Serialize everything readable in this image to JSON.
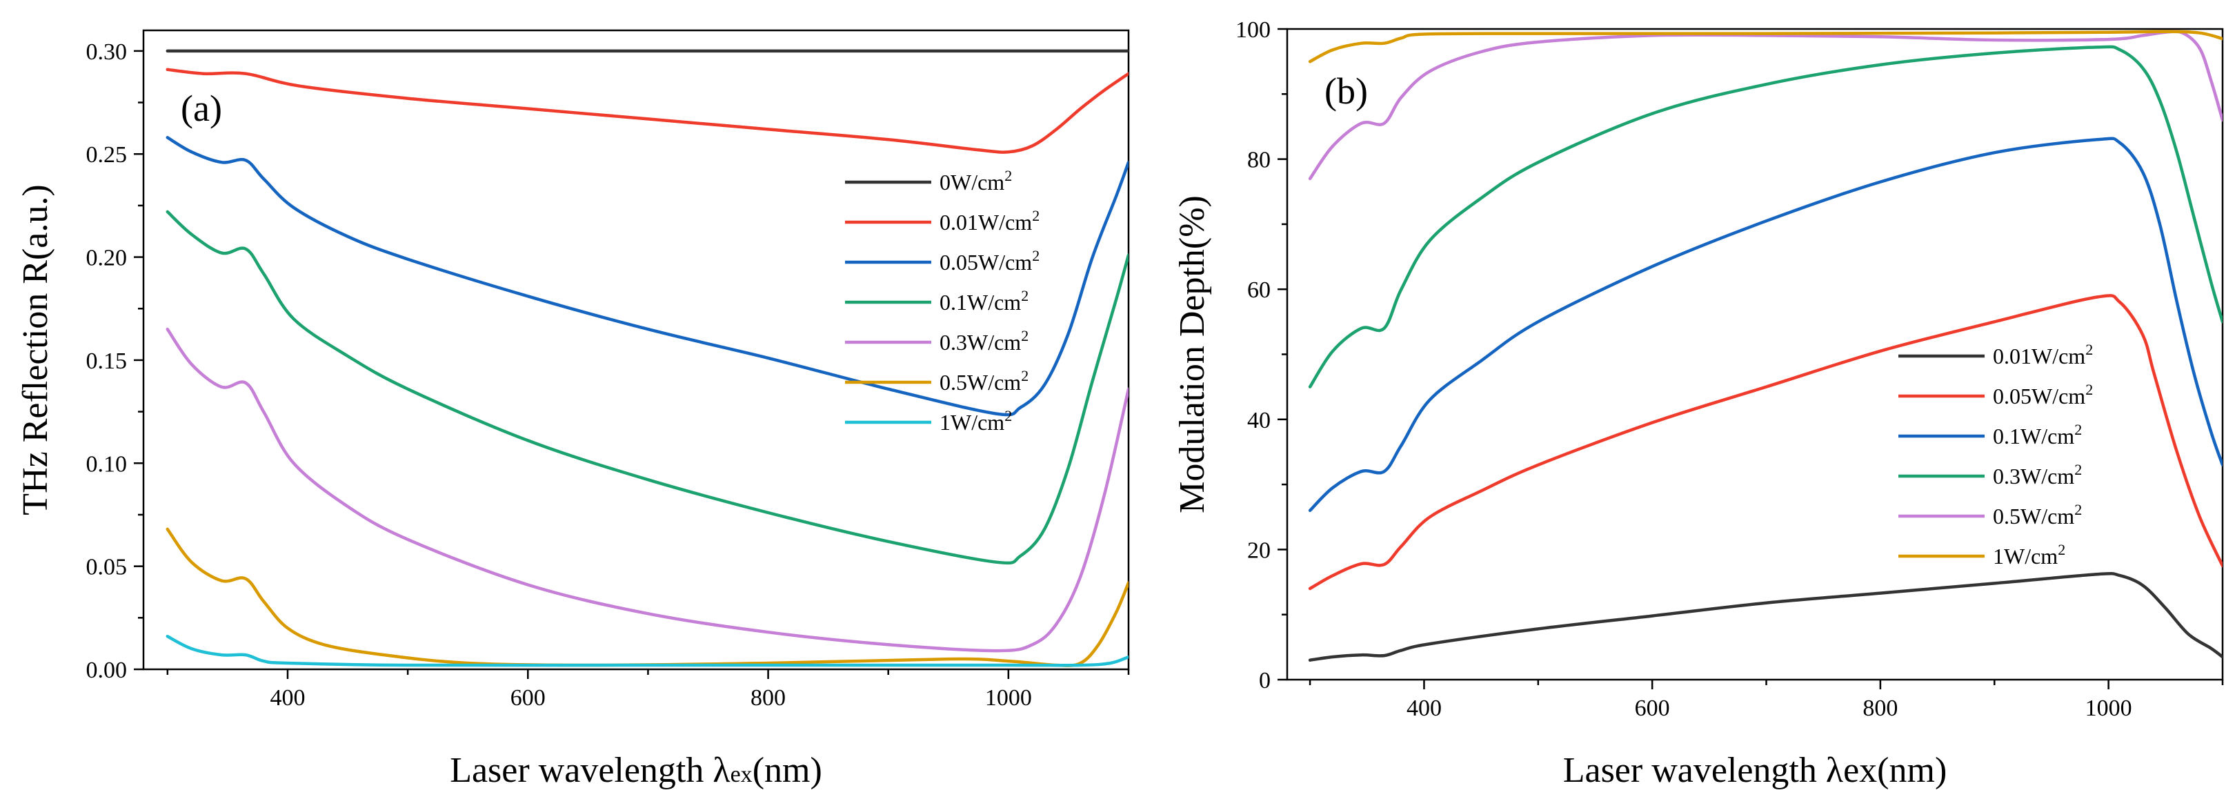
{
  "chart_data": [
    {
      "type": "line",
      "panel": "(a)",
      "xlabel_main": "Laser wavelength λ",
      "xlabel_sub": "ex",
      "xlabel_end": "(nm)",
      "ylabel": "THz Reflection R(a.u.)",
      "xlim": [
        280,
        1100
      ],
      "ylim": [
        0,
        0.31
      ],
      "xticks": [
        400,
        600,
        800,
        1000
      ],
      "xtick_labels": [
        "400",
        "600",
        "800",
        "1000"
      ],
      "yticks": [
        0,
        0.05,
        0.1,
        0.15,
        0.2,
        0.25,
        0.3
      ],
      "ytick_labels": [
        "0.00",
        "0.05",
        "0.10",
        "0.15",
        "0.20",
        "0.25",
        "0.30"
      ],
      "legend_position": "right",
      "series": [
        {
          "name": "0W/cm",
          "sup": "2",
          "color": "#333333",
          "x": [
            300,
            1100
          ],
          "y": [
            0.3,
            0.3
          ]
        },
        {
          "name": "0.01W/cm",
          "sup": "2",
          "color": "#ef3b2c",
          "x": [
            300,
            330,
            365,
            410,
            500,
            600,
            700,
            800,
            900,
            975,
            1000,
            1020,
            1040,
            1060,
            1080,
            1100
          ],
          "y": [
            0.291,
            0.289,
            0.289,
            0.283,
            0.277,
            0.272,
            0.267,
            0.262,
            0.257,
            0.252,
            0.251,
            0.254,
            0.262,
            0.272,
            0.281,
            0.289
          ]
        },
        {
          "name": "0.05W/cm",
          "sup": "2",
          "color": "#1565c0",
          "x": [
            300,
            320,
            345,
            365,
            380,
            405,
            450,
            500,
            600,
            700,
            800,
            900,
            990,
            1010,
            1030,
            1050,
            1070,
            1090,
            1100
          ],
          "y": [
            0.258,
            0.251,
            0.246,
            0.247,
            0.238,
            0.224,
            0.21,
            0.199,
            0.181,
            0.165,
            0.151,
            0.136,
            0.124,
            0.127,
            0.138,
            0.163,
            0.2,
            0.23,
            0.246
          ]
        },
        {
          "name": "0.1W/cm",
          "sup": "2",
          "color": "#1ca26e",
          "x": [
            300,
            320,
            345,
            365,
            380,
            405,
            450,
            500,
            600,
            700,
            800,
            900,
            990,
            1010,
            1030,
            1050,
            1070,
            1090,
            1100
          ],
          "y": [
            0.222,
            0.211,
            0.202,
            0.204,
            0.192,
            0.17,
            0.152,
            0.136,
            0.111,
            0.092,
            0.076,
            0.062,
            0.052,
            0.055,
            0.068,
            0.098,
            0.14,
            0.18,
            0.201
          ]
        },
        {
          "name": "0.3W/cm",
          "sup": "2",
          "color": "#c67fd6",
          "x": [
            300,
            320,
            345,
            365,
            380,
            405,
            450,
            500,
            600,
            700,
            800,
            900,
            990,
            1020,
            1040,
            1060,
            1080,
            1100
          ],
          "y": [
            0.165,
            0.148,
            0.137,
            0.139,
            0.125,
            0.1,
            0.079,
            0.063,
            0.041,
            0.027,
            0.018,
            0.012,
            0.009,
            0.012,
            0.022,
            0.045,
            0.085,
            0.136
          ]
        },
        {
          "name": "0.5W/cm",
          "sup": "2",
          "color": "#d99a00",
          "x": [
            300,
            320,
            345,
            365,
            380,
            400,
            430,
            480,
            550,
            650,
            800,
            950,
            1000,
            1040,
            1060,
            1075,
            1090,
            1100
          ],
          "y": [
            0.068,
            0.052,
            0.043,
            0.044,
            0.033,
            0.02,
            0.012,
            0.007,
            0.003,
            0.002,
            0.003,
            0.005,
            0.004,
            0.002,
            0.003,
            0.012,
            0.028,
            0.042
          ]
        },
        {
          "name": "1W/cm",
          "sup": "2",
          "color": "#1fbfd6",
          "x": [
            300,
            320,
            345,
            365,
            380,
            400,
            500,
            700,
            900,
            1000,
            1060,
            1085,
            1100
          ],
          "y": [
            0.016,
            0.01,
            0.007,
            0.007,
            0.004,
            0.003,
            0.002,
            0.002,
            0.002,
            0.002,
            0.002,
            0.003,
            0.006
          ]
        }
      ]
    },
    {
      "type": "line",
      "panel": "(b)",
      "xlabel": "Laser wavelength λex(nm)",
      "ylabel": "Modulation Depth(%)",
      "xlim": [
        280,
        1100
      ],
      "ylim": [
        0,
        100
      ],
      "xticks": [
        400,
        600,
        800,
        1000
      ],
      "xtick_labels": [
        "400",
        "600",
        "800",
        "1000"
      ],
      "yticks": [
        0,
        20,
        40,
        60,
        80,
        100
      ],
      "ytick_labels": [
        "0",
        "20",
        "40",
        "60",
        "80",
        "100"
      ],
      "legend_position": "right",
      "series": [
        {
          "name": "0.01W/cm",
          "sup": "2",
          "color": "#333333",
          "x": [
            300,
            320,
            345,
            365,
            380,
            405,
            500,
            600,
            700,
            800,
            900,
            990,
            1010,
            1030,
            1050,
            1070,
            1090,
            1100
          ],
          "y": [
            3,
            3.5,
            3.8,
            3.7,
            4.5,
            5.5,
            7.8,
            9.8,
            11.8,
            13.3,
            14.8,
            16.2,
            16,
            14.5,
            11,
            7,
            4.8,
            3.5
          ]
        },
        {
          "name": "0.05W/cm",
          "sup": "2",
          "color": "#ef3b2c",
          "x": [
            300,
            320,
            345,
            365,
            380,
            405,
            450,
            500,
            600,
            700,
            800,
            900,
            990,
            1010,
            1030,
            1040,
            1060,
            1080,
            1100
          ],
          "y": [
            14,
            16,
            17.8,
            17.7,
            20.5,
            25,
            29,
            33,
            39.5,
            45,
            50.5,
            55,
            58.8,
            58,
            53,
            47,
            35,
            25,
            17.5
          ]
        },
        {
          "name": "0.1W/cm",
          "sup": "2",
          "color": "#1565c0",
          "x": [
            300,
            320,
            345,
            365,
            380,
            405,
            450,
            500,
            600,
            700,
            800,
            900,
            990,
            1010,
            1030,
            1045,
            1060,
            1075,
            1090,
            1100
          ],
          "y": [
            26,
            29.5,
            32,
            32,
            36,
            43,
            49,
            55,
            63.5,
            70.5,
            76.5,
            81,
            83,
            82.5,
            78,
            70,
            58,
            47,
            38,
            33
          ]
        },
        {
          "name": "0.3W/cm",
          "sup": "2",
          "color": "#1ca26e",
          "x": [
            300,
            320,
            345,
            365,
            380,
            405,
            450,
            500,
            600,
            700,
            800,
            900,
            990,
            1010,
            1030,
            1045,
            1060,
            1075,
            1090,
            1100
          ],
          "y": [
            45,
            50.5,
            54,
            54,
            60,
            67.5,
            74,
            79.5,
            87,
            91.5,
            94.5,
            96.3,
            97.2,
            96.8,
            94,
            89,
            81,
            71,
            61,
            55
          ]
        },
        {
          "name": "0.5W/cm",
          "sup": "2",
          "color": "#c67fd6",
          "x": [
            300,
            320,
            345,
            365,
            380,
            405,
            450,
            500,
            600,
            700,
            800,
            900,
            1000,
            1030,
            1050,
            1065,
            1080,
            1090,
            1100
          ],
          "y": [
            77,
            82,
            85.5,
            85.5,
            89.5,
            93.5,
            96.5,
            98,
            99,
            99,
            98.8,
            98.3,
            98.4,
            99,
            99.5,
            99.4,
            97,
            92,
            86
          ]
        },
        {
          "name": "1W/cm",
          "sup": "2",
          "color": "#d99a00",
          "x": [
            300,
            320,
            345,
            365,
            380,
            400,
            500,
            700,
            900,
            1000,
            1050,
            1080,
            1100
          ],
          "y": [
            95,
            96.8,
            97.8,
            97.8,
            98.6,
            99.2,
            99.3,
            99.3,
            99.4,
            99.5,
            99.6,
            99.4,
            98.5
          ]
        }
      ]
    }
  ]
}
